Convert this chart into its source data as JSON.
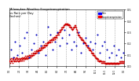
{
  "title": "Milwaukee Weather Evapotranspiration\nvs Rain per Day\n(Inches)",
  "legend_labels": [
    "Rain",
    "Evapotranspiration"
  ],
  "legend_colors": [
    "#0000ff",
    "#ff0000"
  ],
  "rain_color": "#0000bb",
  "et_color": "#cc0000",
  "marker_size": 1.5,
  "background_color": "#ffffff",
  "grid_color": "#aaaaaa",
  "ylim": [
    0,
    0.5
  ],
  "yticks": [
    0.0,
    0.1,
    0.2,
    0.3,
    0.4,
    0.5
  ],
  "month_labels": [
    "1/1",
    "2/1",
    "3/1",
    "4/1",
    "5/1",
    "6/1",
    "7/1",
    "8/1",
    "9/1",
    "10/1",
    "11/1",
    "12/1",
    "1/1"
  ],
  "month_positions": [
    0,
    31,
    59,
    90,
    120,
    151,
    181,
    212,
    243,
    273,
    304,
    334,
    365
  ],
  "et_data": [
    [
      0,
      0.04
    ],
    [
      1,
      0.05
    ],
    [
      2,
      0.03
    ],
    [
      3,
      0.06
    ],
    [
      4,
      0.04
    ],
    [
      5,
      0.05
    ],
    [
      6,
      0.07
    ],
    [
      7,
      0.04
    ],
    [
      8,
      0.05
    ],
    [
      9,
      0.06
    ],
    [
      10,
      0.03
    ],
    [
      11,
      0.07
    ],
    [
      12,
      0.05
    ],
    [
      13,
      0.06
    ],
    [
      14,
      0.04
    ],
    [
      15,
      0.05
    ],
    [
      16,
      0.08
    ],
    [
      17,
      0.06
    ],
    [
      18,
      0.05
    ],
    [
      19,
      0.07
    ],
    [
      20,
      0.04
    ],
    [
      21,
      0.06
    ],
    [
      22,
      0.05
    ],
    [
      23,
      0.08
    ],
    [
      24,
      0.06
    ],
    [
      25,
      0.05
    ],
    [
      26,
      0.07
    ],
    [
      27,
      0.04
    ],
    [
      28,
      0.06
    ],
    [
      29,
      0.05
    ],
    [
      30,
      0.07
    ],
    [
      31,
      0.04
    ],
    [
      32,
      0.05
    ],
    [
      33,
      0.06
    ],
    [
      34,
      0.05
    ],
    [
      35,
      0.07
    ],
    [
      36,
      0.06
    ],
    [
      37,
      0.05
    ],
    [
      38,
      0.07
    ],
    [
      39,
      0.06
    ],
    [
      40,
      0.08
    ],
    [
      41,
      0.05
    ],
    [
      42,
      0.07
    ],
    [
      43,
      0.06
    ],
    [
      44,
      0.08
    ],
    [
      45,
      0.07
    ],
    [
      46,
      0.05
    ],
    [
      47,
      0.08
    ],
    [
      48,
      0.06
    ],
    [
      49,
      0.07
    ],
    [
      50,
      0.09
    ],
    [
      51,
      0.06
    ],
    [
      52,
      0.08
    ],
    [
      53,
      0.07
    ],
    [
      54,
      0.09
    ],
    [
      55,
      0.06
    ],
    [
      56,
      0.08
    ],
    [
      57,
      0.09
    ],
    [
      58,
      0.07
    ],
    [
      59,
      0.08
    ],
    [
      60,
      0.07
    ],
    [
      61,
      0.09
    ],
    [
      62,
      0.08
    ],
    [
      63,
      0.1
    ],
    [
      64,
      0.09
    ],
    [
      65,
      0.08
    ],
    [
      66,
      0.1
    ],
    [
      67,
      0.09
    ],
    [
      68,
      0.08
    ],
    [
      69,
      0.1
    ],
    [
      70,
      0.09
    ],
    [
      71,
      0.11
    ],
    [
      72,
      0.1
    ],
    [
      73,
      0.09
    ],
    [
      74,
      0.11
    ],
    [
      75,
      0.1
    ],
    [
      76,
      0.12
    ],
    [
      77,
      0.11
    ],
    [
      78,
      0.1
    ],
    [
      79,
      0.12
    ],
    [
      80,
      0.11
    ],
    [
      81,
      0.13
    ],
    [
      82,
      0.12
    ],
    [
      83,
      0.11
    ],
    [
      84,
      0.13
    ],
    [
      85,
      0.12
    ],
    [
      86,
      0.14
    ],
    [
      87,
      0.13
    ],
    [
      88,
      0.12
    ],
    [
      89,
      0.14
    ],
    [
      90,
      0.13
    ],
    [
      91,
      0.15
    ],
    [
      92,
      0.14
    ],
    [
      93,
      0.13
    ],
    [
      94,
      0.15
    ],
    [
      95,
      0.14
    ],
    [
      96,
      0.16
    ],
    [
      97,
      0.15
    ],
    [
      98,
      0.14
    ],
    [
      99,
      0.16
    ],
    [
      100,
      0.15
    ],
    [
      101,
      0.17
    ],
    [
      102,
      0.16
    ],
    [
      103,
      0.15
    ],
    [
      104,
      0.17
    ],
    [
      105,
      0.16
    ],
    [
      106,
      0.18
    ],
    [
      107,
      0.17
    ],
    [
      108,
      0.16
    ],
    [
      109,
      0.18
    ],
    [
      110,
      0.17
    ],
    [
      111,
      0.19
    ],
    [
      112,
      0.18
    ],
    [
      113,
      0.17
    ],
    [
      114,
      0.19
    ],
    [
      115,
      0.18
    ],
    [
      116,
      0.2
    ],
    [
      117,
      0.19
    ],
    [
      118,
      0.18
    ],
    [
      119,
      0.2
    ],
    [
      120,
      0.19
    ],
    [
      121,
      0.21
    ],
    [
      122,
      0.2
    ],
    [
      123,
      0.22
    ],
    [
      124,
      0.21
    ],
    [
      125,
      0.22
    ],
    [
      126,
      0.21
    ],
    [
      127,
      0.23
    ],
    [
      128,
      0.22
    ],
    [
      129,
      0.21
    ],
    [
      130,
      0.23
    ],
    [
      131,
      0.22
    ],
    [
      132,
      0.24
    ],
    [
      133,
      0.23
    ],
    [
      134,
      0.22
    ],
    [
      135,
      0.24
    ],
    [
      136,
      0.23
    ],
    [
      137,
      0.25
    ],
    [
      138,
      0.24
    ],
    [
      139,
      0.23
    ],
    [
      140,
      0.25
    ],
    [
      141,
      0.24
    ],
    [
      142,
      0.26
    ],
    [
      143,
      0.25
    ],
    [
      144,
      0.24
    ],
    [
      145,
      0.26
    ],
    [
      146,
      0.25
    ],
    [
      147,
      0.27
    ],
    [
      148,
      0.26
    ],
    [
      149,
      0.25
    ],
    [
      150,
      0.27
    ],
    [
      151,
      0.26
    ],
    [
      152,
      0.28
    ],
    [
      153,
      0.29
    ],
    [
      154,
      0.28
    ],
    [
      155,
      0.3
    ],
    [
      156,
      0.29
    ],
    [
      157,
      0.28
    ],
    [
      158,
      0.3
    ],
    [
      159,
      0.31
    ],
    [
      160,
      0.3
    ],
    [
      161,
      0.32
    ],
    [
      162,
      0.31
    ],
    [
      163,
      0.32
    ],
    [
      164,
      0.33
    ],
    [
      165,
      0.32
    ],
    [
      166,
      0.34
    ],
    [
      167,
      0.33
    ],
    [
      168,
      0.34
    ],
    [
      169,
      0.35
    ],
    [
      170,
      0.34
    ],
    [
      171,
      0.35
    ],
    [
      172,
      0.36
    ],
    [
      173,
      0.35
    ],
    [
      174,
      0.36
    ],
    [
      175,
      0.37
    ],
    [
      176,
      0.36
    ],
    [
      177,
      0.37
    ],
    [
      178,
      0.38
    ],
    [
      179,
      0.37
    ],
    [
      180,
      0.38
    ],
    [
      181,
      0.37
    ],
    [
      182,
      0.38
    ],
    [
      183,
      0.37
    ],
    [
      184,
      0.36
    ],
    [
      185,
      0.37
    ],
    [
      186,
      0.38
    ],
    [
      187,
      0.37
    ],
    [
      188,
      0.36
    ],
    [
      189,
      0.37
    ],
    [
      190,
      0.36
    ],
    [
      191,
      0.35
    ],
    [
      192,
      0.36
    ],
    [
      193,
      0.35
    ],
    [
      194,
      0.34
    ],
    [
      195,
      0.35
    ],
    [
      196,
      0.34
    ],
    [
      197,
      0.33
    ],
    [
      198,
      0.34
    ],
    [
      199,
      0.33
    ],
    [
      200,
      0.32
    ],
    [
      201,
      0.33
    ],
    [
      202,
      0.34
    ],
    [
      203,
      0.33
    ],
    [
      204,
      0.34
    ],
    [
      205,
      0.35
    ],
    [
      206,
      0.34
    ],
    [
      207,
      0.35
    ],
    [
      208,
      0.36
    ],
    [
      209,
      0.35
    ],
    [
      210,
      0.36
    ],
    [
      211,
      0.35
    ],
    [
      212,
      0.34
    ],
    [
      213,
      0.33
    ],
    [
      214,
      0.32
    ],
    [
      215,
      0.31
    ],
    [
      216,
      0.3
    ],
    [
      217,
      0.29
    ],
    [
      218,
      0.28
    ],
    [
      219,
      0.27
    ],
    [
      220,
      0.28
    ],
    [
      221,
      0.27
    ],
    [
      222,
      0.26
    ],
    [
      223,
      0.27
    ],
    [
      224,
      0.26
    ],
    [
      225,
      0.25
    ],
    [
      226,
      0.26
    ],
    [
      227,
      0.25
    ],
    [
      228,
      0.24
    ],
    [
      229,
      0.25
    ],
    [
      230,
      0.24
    ],
    [
      231,
      0.23
    ],
    [
      232,
      0.24
    ],
    [
      233,
      0.23
    ],
    [
      234,
      0.22
    ],
    [
      235,
      0.23
    ],
    [
      236,
      0.22
    ],
    [
      237,
      0.21
    ],
    [
      238,
      0.22
    ],
    [
      239,
      0.21
    ],
    [
      240,
      0.2
    ],
    [
      241,
      0.21
    ],
    [
      242,
      0.2
    ],
    [
      243,
      0.19
    ],
    [
      244,
      0.18
    ],
    [
      245,
      0.19
    ],
    [
      246,
      0.18
    ],
    [
      247,
      0.17
    ],
    [
      248,
      0.18
    ],
    [
      249,
      0.17
    ],
    [
      250,
      0.16
    ],
    [
      251,
      0.17
    ],
    [
      252,
      0.16
    ],
    [
      253,
      0.15
    ],
    [
      254,
      0.16
    ],
    [
      255,
      0.15
    ],
    [
      256,
      0.14
    ],
    [
      257,
      0.15
    ],
    [
      258,
      0.14
    ],
    [
      259,
      0.13
    ],
    [
      260,
      0.12
    ],
    [
      261,
      0.13
    ],
    [
      262,
      0.12
    ],
    [
      263,
      0.11
    ],
    [
      264,
      0.12
    ],
    [
      265,
      0.11
    ],
    [
      266,
      0.1
    ],
    [
      267,
      0.11
    ],
    [
      268,
      0.1
    ],
    [
      269,
      0.09
    ],
    [
      270,
      0.1
    ],
    [
      271,
      0.09
    ],
    [
      272,
      0.08
    ],
    [
      273,
      0.09
    ],
    [
      274,
      0.08
    ],
    [
      275,
      0.07
    ],
    [
      276,
      0.08
    ],
    [
      277,
      0.07
    ],
    [
      278,
      0.06
    ],
    [
      279,
      0.07
    ],
    [
      280,
      0.06
    ],
    [
      281,
      0.05
    ],
    [
      282,
      0.06
    ],
    [
      283,
      0.05
    ],
    [
      284,
      0.04
    ],
    [
      285,
      0.05
    ],
    [
      286,
      0.04
    ],
    [
      287,
      0.05
    ],
    [
      288,
      0.04
    ],
    [
      289,
      0.05
    ],
    [
      290,
      0.04
    ],
    [
      291,
      0.05
    ],
    [
      292,
      0.04
    ],
    [
      293,
      0.03
    ],
    [
      294,
      0.04
    ],
    [
      295,
      0.03
    ],
    [
      296,
      0.04
    ],
    [
      297,
      0.03
    ],
    [
      298,
      0.04
    ],
    [
      299,
      0.03
    ],
    [
      300,
      0.04
    ],
    [
      301,
      0.03
    ],
    [
      302,
      0.04
    ],
    [
      303,
      0.03
    ],
    [
      304,
      0.02
    ],
    [
      305,
      0.03
    ],
    [
      306,
      0.02
    ],
    [
      307,
      0.03
    ],
    [
      308,
      0.02
    ],
    [
      309,
      0.03
    ],
    [
      310,
      0.02
    ],
    [
      311,
      0.03
    ],
    [
      312,
      0.02
    ],
    [
      313,
      0.03
    ],
    [
      314,
      0.02
    ],
    [
      315,
      0.03
    ],
    [
      316,
      0.02
    ],
    [
      317,
      0.03
    ],
    [
      318,
      0.02
    ],
    [
      319,
      0.03
    ],
    [
      320,
      0.02
    ],
    [
      321,
      0.03
    ],
    [
      322,
      0.02
    ],
    [
      323,
      0.03
    ],
    [
      324,
      0.02
    ],
    [
      325,
      0.03
    ],
    [
      326,
      0.02
    ],
    [
      327,
      0.03
    ],
    [
      328,
      0.02
    ],
    [
      329,
      0.03
    ],
    [
      330,
      0.02
    ],
    [
      331,
      0.03
    ],
    [
      332,
      0.02
    ],
    [
      333,
      0.03
    ],
    [
      334,
      0.02
    ],
    [
      335,
      0.03
    ],
    [
      336,
      0.02
    ],
    [
      337,
      0.03
    ],
    [
      338,
      0.02
    ],
    [
      339,
      0.03
    ],
    [
      340,
      0.02
    ],
    [
      341,
      0.03
    ],
    [
      342,
      0.02
    ],
    [
      343,
      0.03
    ],
    [
      344,
      0.02
    ],
    [
      345,
      0.03
    ],
    [
      346,
      0.02
    ],
    [
      347,
      0.03
    ],
    [
      348,
      0.02
    ],
    [
      349,
      0.03
    ],
    [
      350,
      0.04
    ],
    [
      351,
      0.03
    ],
    [
      352,
      0.04
    ],
    [
      353,
      0.03
    ],
    [
      354,
      0.04
    ],
    [
      355,
      0.03
    ],
    [
      356,
      0.04
    ],
    [
      357,
      0.03
    ],
    [
      358,
      0.04
    ],
    [
      359,
      0.03
    ],
    [
      360,
      0.04
    ],
    [
      361,
      0.03
    ],
    [
      362,
      0.04
    ],
    [
      363,
      0.03
    ],
    [
      364,
      0.04
    ]
  ],
  "rain_data": [
    [
      5,
      0.15
    ],
    [
      12,
      0.08
    ],
    [
      18,
      0.22
    ],
    [
      25,
      0.1
    ],
    [
      32,
      0.18
    ],
    [
      40,
      0.12
    ],
    [
      47,
      0.25
    ],
    [
      55,
      0.3
    ],
    [
      63,
      0.08
    ],
    [
      70,
      0.15
    ],
    [
      78,
      0.2
    ],
    [
      85,
      0.28
    ],
    [
      92,
      0.12
    ],
    [
      100,
      0.18
    ],
    [
      108,
      0.22
    ],
    [
      115,
      0.1
    ],
    [
      122,
      0.35
    ],
    [
      130,
      0.28
    ],
    [
      138,
      0.15
    ],
    [
      145,
      0.22
    ],
    [
      152,
      0.3
    ],
    [
      160,
      0.18
    ],
    [
      168,
      0.25
    ],
    [
      175,
      0.32
    ],
    [
      182,
      0.2
    ],
    [
      190,
      0.28
    ],
    [
      197,
      0.15
    ],
    [
      205,
      0.22
    ],
    [
      212,
      0.18
    ],
    [
      220,
      0.3
    ],
    [
      228,
      0.12
    ],
    [
      235,
      0.2
    ],
    [
      243,
      0.25
    ],
    [
      250,
      0.18
    ],
    [
      258,
      0.22
    ],
    [
      265,
      0.15
    ],
    [
      273,
      0.2
    ],
    [
      280,
      0.28
    ],
    [
      288,
      0.12
    ],
    [
      295,
      0.18
    ],
    [
      303,
      0.22
    ],
    [
      310,
      0.15
    ],
    [
      318,
      0.08
    ],
    [
      325,
      0.12
    ],
    [
      333,
      0.18
    ],
    [
      340,
      0.1
    ],
    [
      348,
      0.15
    ],
    [
      355,
      0.08
    ],
    [
      362,
      0.12
    ]
  ]
}
